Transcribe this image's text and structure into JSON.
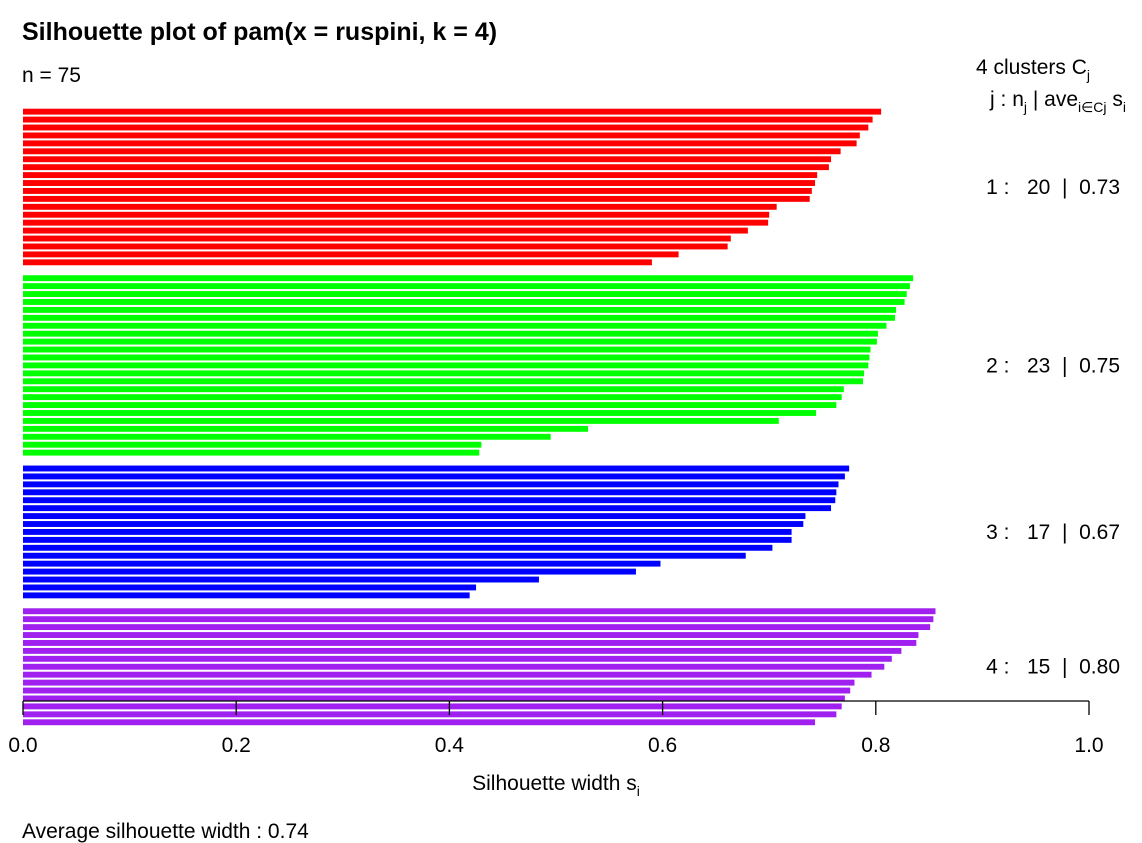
{
  "colors": {
    "cluster_1": "#ff0000",
    "cluster_2": "#00ff00",
    "cluster_3": "#0000ff",
    "cluster_4": "#a020f0"
  },
  "chart_data": {
    "type": "bar",
    "orientation": "horizontal",
    "title": "Silhouette plot of pam(x = ruspini, k = 4)",
    "n_label": "n = 75",
    "legend_header": {
      "clusters_text": "4  clusters  C",
      "clusters_sub": "j",
      "j_text": "j :  n",
      "j_sub": "j",
      "ave_text": " | ave",
      "ave_sub": "i∈Cj",
      "s_text": "  s",
      "s_sub": "i"
    },
    "xlabel": "Silhouette width s",
    "xlabel_sub": "i",
    "xlim": [
      0,
      1
    ],
    "xticks": [
      0.0,
      0.2,
      0.4,
      0.6,
      0.8,
      1.0
    ],
    "xtick_labels": [
      "0.0",
      "0.2",
      "0.4",
      "0.6",
      "0.8",
      "1.0"
    ],
    "footer": "Average silhouette width :  0.74",
    "clusters": [
      {
        "id": 1,
        "n": 20,
        "ave": 0.73,
        "label": "1 :   20  |  0.73",
        "values": [
          0.805,
          0.797,
          0.793,
          0.785,
          0.782,
          0.767,
          0.758,
          0.756,
          0.745,
          0.743,
          0.74,
          0.738,
          0.707,
          0.7,
          0.699,
          0.68,
          0.664,
          0.661,
          0.615,
          0.59
        ]
      },
      {
        "id": 2,
        "n": 23,
        "ave": 0.75,
        "label": "2 :   23  |  0.75",
        "values": [
          0.835,
          0.832,
          0.829,
          0.827,
          0.819,
          0.818,
          0.81,
          0.802,
          0.801,
          0.795,
          0.794,
          0.793,
          0.789,
          0.788,
          0.77,
          0.768,
          0.763,
          0.744,
          0.709,
          0.53,
          0.495,
          0.43,
          0.428
        ]
      },
      {
        "id": 3,
        "n": 17,
        "ave": 0.67,
        "label": "3 :   17  |  0.67",
        "values": [
          0.775,
          0.771,
          0.765,
          0.763,
          0.762,
          0.758,
          0.734,
          0.732,
          0.721,
          0.721,
          0.703,
          0.678,
          0.598,
          0.575,
          0.484,
          0.425,
          0.419
        ]
      },
      {
        "id": 4,
        "n": 15,
        "ave": 0.8,
        "label": "4 :   15  |  0.80",
        "values": [
          0.856,
          0.854,
          0.851,
          0.84,
          0.838,
          0.824,
          0.815,
          0.808,
          0.796,
          0.78,
          0.776,
          0.771,
          0.768,
          0.763,
          0.743
        ]
      }
    ]
  }
}
